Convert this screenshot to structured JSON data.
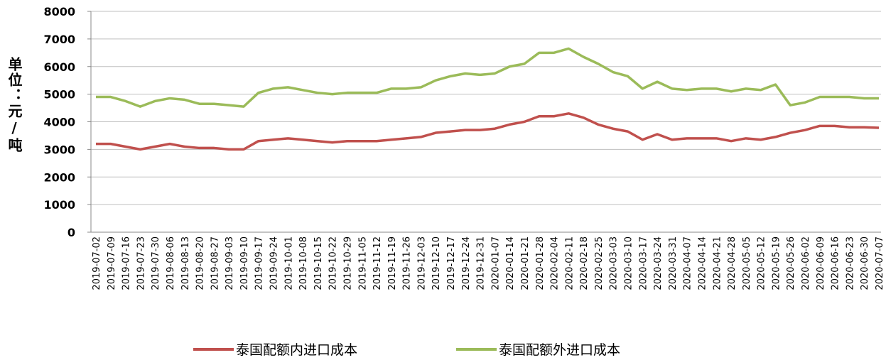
{
  "chart_data": {
    "type": "line",
    "y_label": "单位：元/吨",
    "categories": [
      "2019-07-02",
      "2019-07-09",
      "2019-07-16",
      "2019-07-23",
      "2019-07-30",
      "2019-08-06",
      "2019-08-13",
      "2019-08-20",
      "2019-08-27",
      "2019-09-03",
      "2019-09-10",
      "2019-09-17",
      "2019-09-24",
      "2019-10-01",
      "2019-10-08",
      "2019-10-15",
      "2019-10-22",
      "2019-10-29",
      "2019-11-05",
      "2019-11-12",
      "2019-11-19",
      "2019-11-26",
      "2019-12-03",
      "2019-12-10",
      "2019-12-17",
      "2019-12-24",
      "2019-12-31",
      "2020-01-07",
      "2020-01-14",
      "2020-01-21",
      "2020-01-28",
      "2020-02-04",
      "2020-02-11",
      "2020-02-18",
      "2020-02-25",
      "2020-03-03",
      "2020-03-10",
      "2020-03-17",
      "2020-03-24",
      "2020-03-31",
      "2020-04-07",
      "2020-04-14",
      "2020-04-21",
      "2020-04-28",
      "2020-05-05",
      "2020-05-12",
      "2020-05-19",
      "2020-05-26",
      "2020-06-02",
      "2020-06-09",
      "2020-06-16",
      "2020-06-23",
      "2020-06-30",
      "2020-07-07"
    ],
    "series": [
      {
        "name": "泰国配额内进口成本",
        "color": "#c0504d",
        "values": [
          3200,
          3200,
          3100,
          3000,
          3100,
          3200,
          3100,
          3050,
          3050,
          3000,
          3000,
          3300,
          3350,
          3400,
          3350,
          3300,
          3250,
          3300,
          3300,
          3300,
          3350,
          3400,
          3450,
          3600,
          3650,
          3700,
          3700,
          3750,
          3900,
          4000,
          4200,
          4200,
          4300,
          4150,
          3900,
          3750,
          3650,
          3350,
          3550,
          3350,
          3400,
          3400,
          3400,
          3300,
          3400,
          3350,
          3450,
          3600,
          3700,
          3850,
          3850,
          3800,
          3800,
          3780
        ]
      },
      {
        "name": "泰国配额外进口成本",
        "color": "#9bbb59",
        "values": [
          4900,
          4900,
          4750,
          4550,
          4750,
          4850,
          4800,
          4650,
          4650,
          4600,
          4550,
          5050,
          5200,
          5250,
          5150,
          5050,
          5000,
          5050,
          5050,
          5050,
          5200,
          5200,
          5250,
          5500,
          5650,
          5750,
          5700,
          5750,
          6000,
          6100,
          6500,
          6500,
          6650,
          6350,
          6100,
          5800,
          5650,
          5200,
          5450,
          5200,
          5150,
          5200,
          5200,
          5100,
          5200,
          5150,
          5350,
          4600,
          4700,
          4900,
          4900,
          4900,
          4850,
          4850
        ]
      }
    ],
    "ylim": [
      0,
      8000
    ],
    "yticks": [
      0,
      1000,
      2000,
      3000,
      4000,
      5000,
      6000,
      7000,
      8000
    ]
  }
}
